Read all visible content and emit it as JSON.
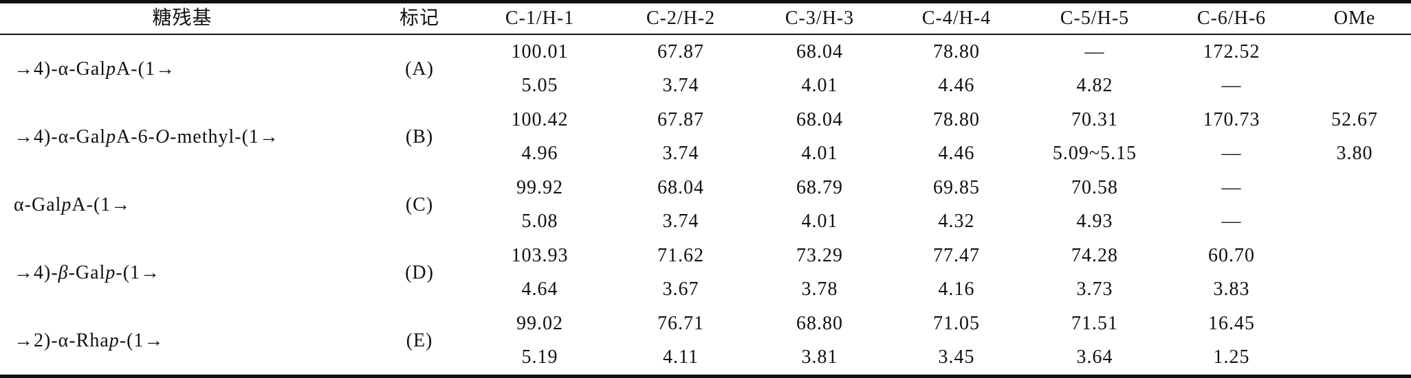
{
  "table": {
    "header": [
      "糖残基",
      "标记",
      "C-1/H-1",
      "C-2/H-2",
      "C-3/H-3",
      "C-4/H-4",
      "C-5/H-5",
      "C-6/H-6",
      "OMe"
    ],
    "rows": [
      {
        "name": [
          "→4)-α-Gal",
          "p",
          "A-(1→"
        ],
        "label": "(A)",
        "c": [
          "100.01",
          "67.87",
          "68.04",
          "78.80",
          "—",
          "172.52",
          null
        ],
        "h": [
          "5.05",
          "3.74",
          "4.01",
          "4.46",
          "4.82",
          "—",
          null
        ]
      },
      {
        "name": [
          "→4)-α-Gal",
          "p",
          "A-6-",
          "O",
          "-methyl-(1→"
        ],
        "label": "(B)",
        "c": [
          "100.42",
          "67.87",
          "68.04",
          "78.80",
          "70.31",
          "170.73",
          "52.67"
        ],
        "h": [
          "4.96",
          "3.74",
          "4.01",
          "4.46",
          "5.09~5.15",
          "—",
          "3.80"
        ]
      },
      {
        "name": [
          "α-Gal",
          "p",
          "A-(1→"
        ],
        "label": "(C)",
        "c": [
          "99.92",
          "68.04",
          "68.79",
          "69.85",
          "70.58",
          "—",
          null
        ],
        "h": [
          "5.08",
          "3.74",
          "4.01",
          "4.32",
          "4.93",
          "—",
          null
        ]
      },
      {
        "name": [
          "→4)-",
          "β",
          "-Gal",
          "p",
          "-(1→"
        ],
        "label": "(D)",
        "c": [
          "103.93",
          "71.62",
          "73.29",
          "77.47",
          "74.28",
          "60.70",
          null
        ],
        "h": [
          "4.64",
          "3.67",
          "3.78",
          "4.16",
          "3.73",
          "3.83",
          null
        ]
      },
      {
        "name": [
          "→2)-α-Rha",
          "p",
          "-(1→"
        ],
        "label": "(E)",
        "c": [
          "99.02",
          "76.71",
          "68.80",
          "71.05",
          "71.51",
          "16.45",
          null
        ],
        "h": [
          "5.19",
          "4.11",
          "3.81",
          "3.45",
          "3.64",
          "1.25",
          null
        ]
      }
    ]
  }
}
